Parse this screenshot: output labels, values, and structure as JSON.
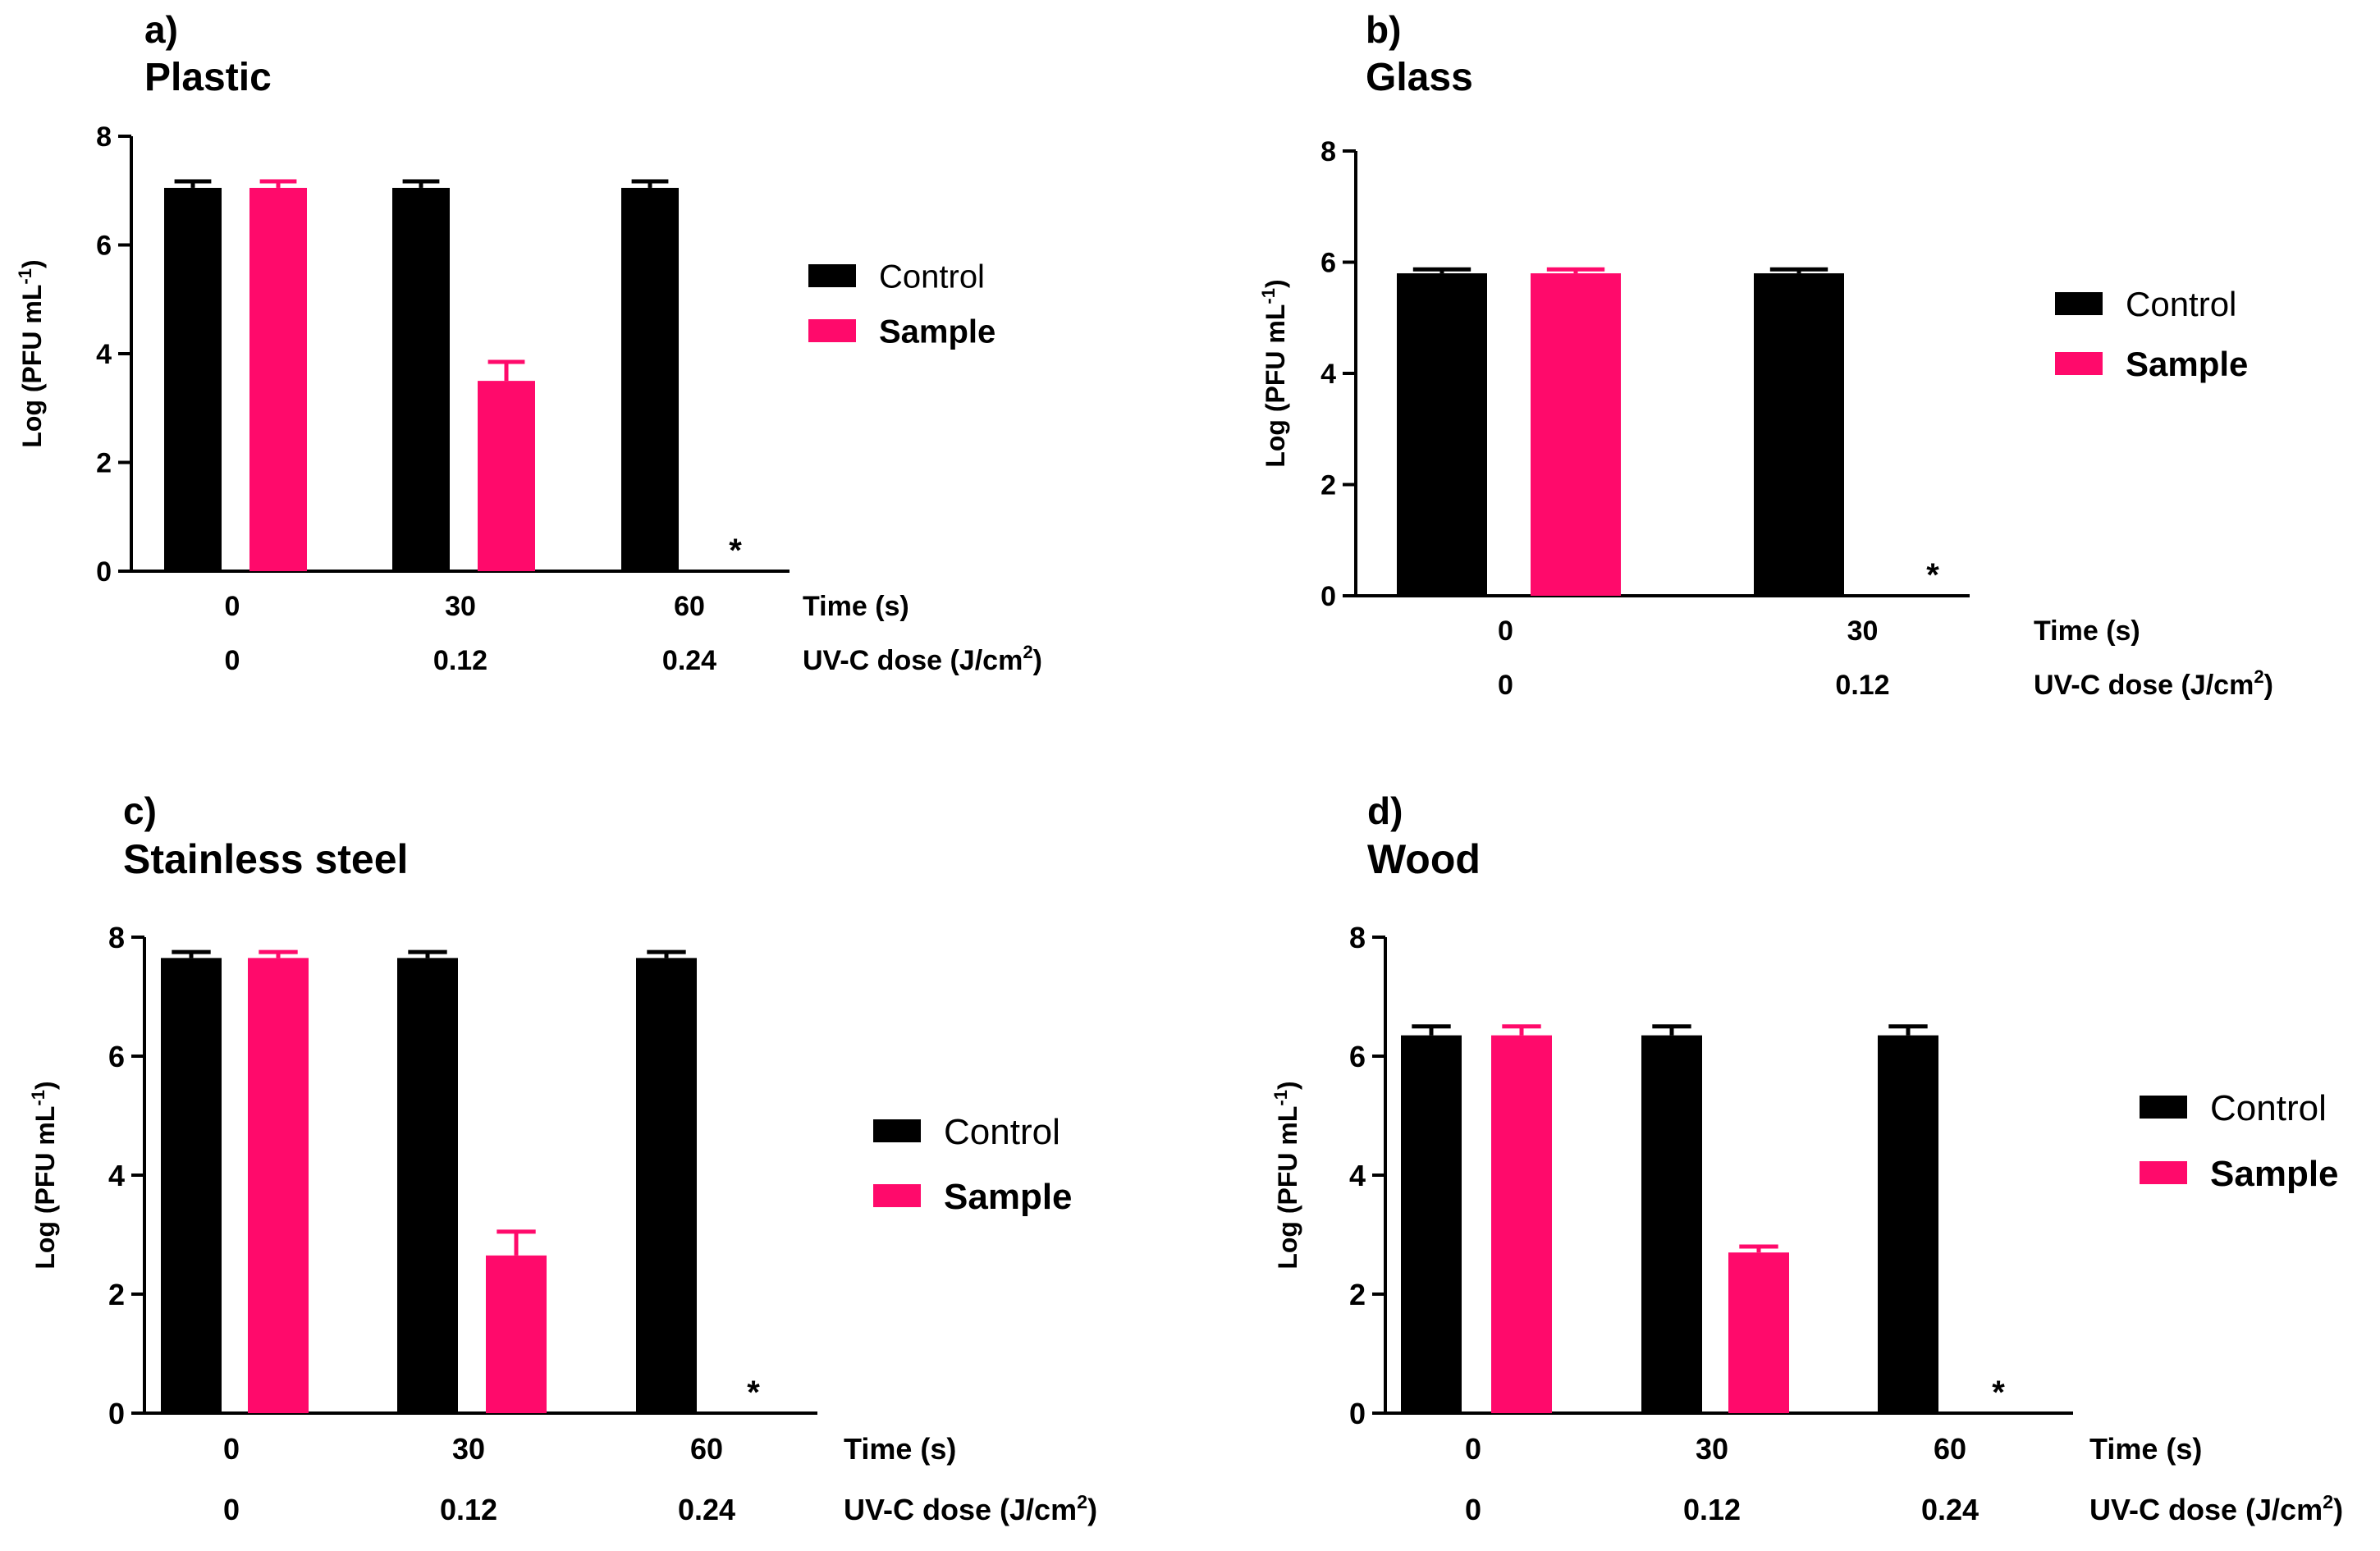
{
  "legend": {
    "control": "Control",
    "sample": "Sample"
  },
  "axis_row_labels": {
    "time": "Time (s)",
    "dose": "UV-C dose (J/cm",
    "dose_sup": "2",
    "dose_close": ")"
  },
  "ylabel_main": "Log (PFU mL",
  "ylabel_sup": "-1",
  "ylabel_close": ")",
  "colors": {
    "control": "#000000",
    "sample": "#FF0A6B"
  },
  "chart_data": [
    {
      "type": "bar",
      "panel_letter": "a)",
      "title": "Plastic",
      "categories": [
        "0",
        "30",
        "60"
      ],
      "dose_labels": [
        "0",
        "0.12",
        "0.24"
      ],
      "ylim": [
        0,
        8
      ],
      "yticks": [
        0,
        2,
        4,
        6,
        8
      ],
      "series": [
        {
          "name": "Control",
          "values": [
            7.05,
            7.05,
            7.05
          ],
          "errors": [
            0.12,
            0.12,
            0.12
          ]
        },
        {
          "name": "Sample",
          "values": [
            7.05,
            3.5,
            null
          ],
          "errors": [
            0.12,
            0.35,
            null
          ]
        }
      ],
      "annotations": [
        {
          "category": 2,
          "series": 1,
          "text": "*"
        }
      ]
    },
    {
      "type": "bar",
      "panel_letter": "b)",
      "title": "Glass",
      "categories": [
        "0",
        "30"
      ],
      "dose_labels": [
        "0",
        "0.12"
      ],
      "ylim": [
        0,
        8
      ],
      "yticks": [
        0,
        2,
        4,
        6,
        8
      ],
      "series": [
        {
          "name": "Control",
          "values": [
            5.8,
            5.8
          ],
          "errors": [
            0.07,
            0.07
          ]
        },
        {
          "name": "Sample",
          "values": [
            5.8,
            null
          ],
          "errors": [
            0.07,
            null
          ]
        }
      ],
      "annotations": [
        {
          "category": 1,
          "series": 1,
          "text": "*"
        }
      ]
    },
    {
      "type": "bar",
      "panel_letter": "c)",
      "title": "Stainless steel",
      "categories": [
        "0",
        "30",
        "60"
      ],
      "dose_labels": [
        "0",
        "0.12",
        "0.24"
      ],
      "ylim": [
        0,
        8
      ],
      "yticks": [
        0,
        2,
        4,
        6,
        8
      ],
      "series": [
        {
          "name": "Control",
          "values": [
            7.65,
            7.65,
            7.65
          ],
          "errors": [
            0.1,
            0.1,
            0.1
          ]
        },
        {
          "name": "Sample",
          "values": [
            7.65,
            2.65,
            null
          ],
          "errors": [
            0.1,
            0.4,
            null
          ]
        }
      ],
      "annotations": [
        {
          "category": 2,
          "series": 1,
          "text": "*"
        }
      ]
    },
    {
      "type": "bar",
      "panel_letter": "d)",
      "title": "Wood",
      "categories": [
        "0",
        "30",
        "60"
      ],
      "dose_labels": [
        "0",
        "0.12",
        "0.24"
      ],
      "ylim": [
        0,
        8
      ],
      "yticks": [
        0,
        2,
        4,
        6,
        8
      ],
      "series": [
        {
          "name": "Control",
          "values": [
            6.35,
            6.35,
            6.35
          ],
          "errors": [
            0.15,
            0.15,
            0.15
          ]
        },
        {
          "name": "Sample",
          "values": [
            6.35,
            2.7,
            null
          ],
          "errors": [
            0.15,
            0.1,
            null
          ]
        }
      ],
      "annotations": [
        {
          "category": 2,
          "series": 1,
          "text": "*"
        }
      ]
    }
  ]
}
